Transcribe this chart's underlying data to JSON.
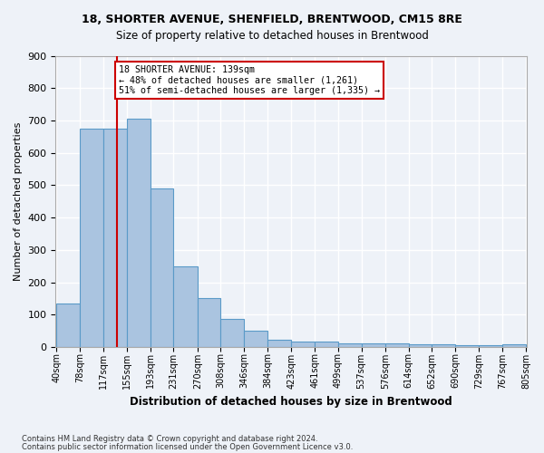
{
  "title1": "18, SHORTER AVENUE, SHENFIELD, BRENTWOOD, CM15 8RE",
  "title2": "Size of property relative to detached houses in Brentwood",
  "xlabel": "Distribution of detached houses by size in Brentwood",
  "ylabel": "Number of detached properties",
  "bar_edges": [
    40,
    78,
    117,
    155,
    193,
    231,
    270,
    308,
    346,
    384,
    423,
    461,
    499,
    537,
    576,
    614,
    652,
    690,
    729,
    767,
    805
  ],
  "bar_heights": [
    135,
    675,
    675,
    705,
    490,
    250,
    150,
    88,
    50,
    22,
    18,
    18,
    10,
    10,
    10,
    8,
    8,
    5,
    5,
    8
  ],
  "bar_color": "#aac4e0",
  "bar_edge_color": "#5a9ac8",
  "property_size": 139,
  "annotation_text": "18 SHORTER AVENUE: 139sqm\n← 48% of detached houses are smaller (1,261)\n51% of semi-detached houses are larger (1,335) →",
  "annotation_box_color": "#ffffff",
  "annotation_box_edge_color": "#cc0000",
  "vline_color": "#cc0000",
  "footer1": "Contains HM Land Registry data © Crown copyright and database right 2024.",
  "footer2": "Contains public sector information licensed under the Open Government Licence v3.0.",
  "bg_color": "#eef2f8",
  "plot_bg_color": "#eef2f8",
  "grid_color": "#ffffff",
  "ylim": [
    0,
    900
  ],
  "yticks": [
    0,
    100,
    200,
    300,
    400,
    500,
    600,
    700,
    800,
    900
  ]
}
